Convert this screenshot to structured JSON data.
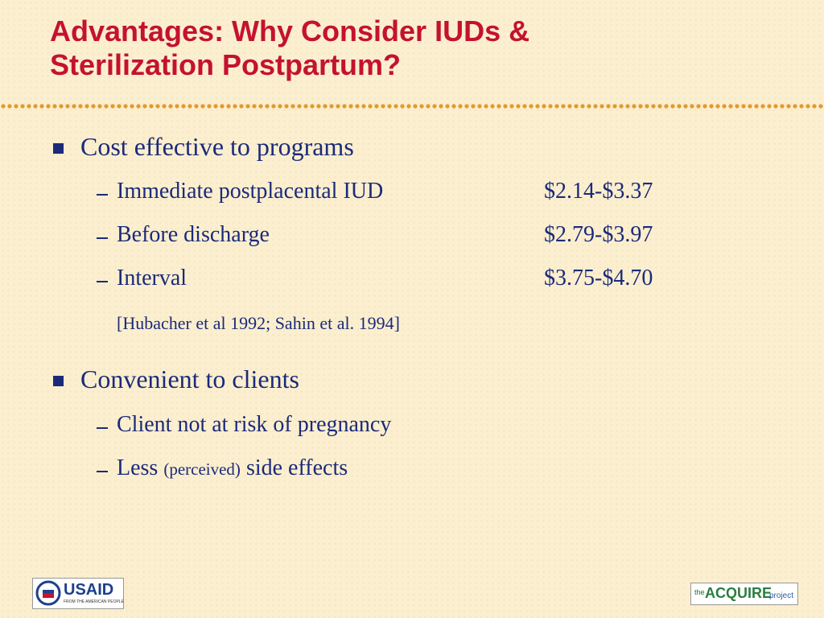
{
  "header": {
    "title_lines": [
      "Advantages: Why Consider IUDs &",
      "Sterilization Postpartum?"
    ]
  },
  "bullets": [
    {
      "text": "Cost effective to programs",
      "items": [
        {
          "text": "Immediate postplacental IUD",
          "cost": "$2.14-$3.37"
        },
        {
          "text": "Before discharge",
          "cost": "$2.79-$3.97"
        },
        {
          "text": "Interval",
          "cost": "$3.75-$4.70"
        }
      ],
      "citation": "[Hubacher et al 1992; Sahin et al. 1994]"
    },
    {
      "text": "Convenient to clients",
      "items": [
        {
          "text": "Client not at risk of pregnancy"
        },
        {
          "parts": [
            "Less ",
            "(perceived)",
            " side effects"
          ]
        }
      ]
    }
  ],
  "footer": {
    "usaid": {
      "name": "USAID",
      "tagline": "FROM THE AMERICAN PEOPLE"
    },
    "acquire": {
      "prefix": "the",
      "name": "ACQUIRE",
      "suffix": "project"
    }
  }
}
